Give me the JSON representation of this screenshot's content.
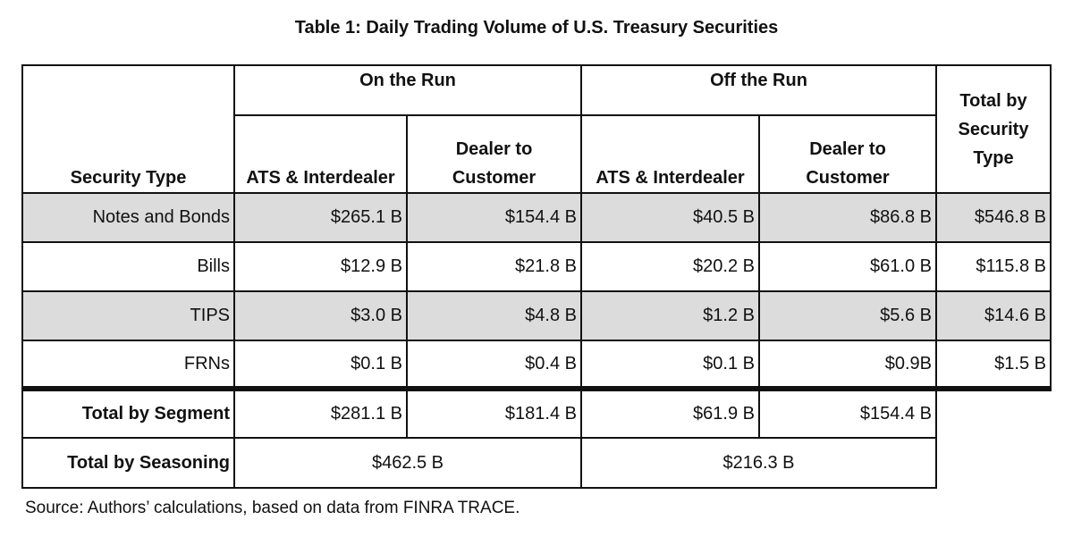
{
  "title": "Table 1: Daily Trading Volume of U.S. Treasury Securities",
  "headers": {
    "security_type": "Security Type",
    "on_the_run": "On the Run",
    "off_the_run": "Off the Run",
    "total_by_security_type": [
      "Total by",
      "Security",
      "Type"
    ],
    "ats_interdealer": "ATS & Interdealer",
    "dealer_to_customer": [
      "Dealer to",
      "Customer"
    ]
  },
  "rows": [
    {
      "label": "Notes and Bonds",
      "on_ats": "$265.1 B",
      "on_dtc": "$154.4 B",
      "off_ats": "$40.5 B",
      "off_dtc": "$86.8 B",
      "total": "$546.8 B"
    },
    {
      "label": "Bills",
      "on_ats": "$12.9 B",
      "on_dtc": "$21.8 B",
      "off_ats": "$20.2 B",
      "off_dtc": "$61.0 B",
      "total": "$115.8 B"
    },
    {
      "label": "TIPS",
      "on_ats": "$3.0 B",
      "on_dtc": "$4.8 B",
      "off_ats": "$1.2 B",
      "off_dtc": "$5.6 B",
      "total": "$14.6 B"
    },
    {
      "label": "FRNs",
      "on_ats": "$0.1 B",
      "on_dtc": "$0.4 B",
      "off_ats": "$0.1 B",
      "off_dtc": "$0.9B",
      "total": "$1.5 B"
    }
  ],
  "total_by_segment": {
    "label": "Total by Segment",
    "on_ats": "$281.1 B",
    "on_dtc": "$181.4 B",
    "off_ats": "$61.9 B",
    "off_dtc": "$154.4 B"
  },
  "total_by_seasoning": {
    "label": "Total by Seasoning",
    "on": "$462.5 B",
    "off": "$216.3 B"
  },
  "source": "Source: Authors’ calculations, based on data from FINRA TRACE."
}
